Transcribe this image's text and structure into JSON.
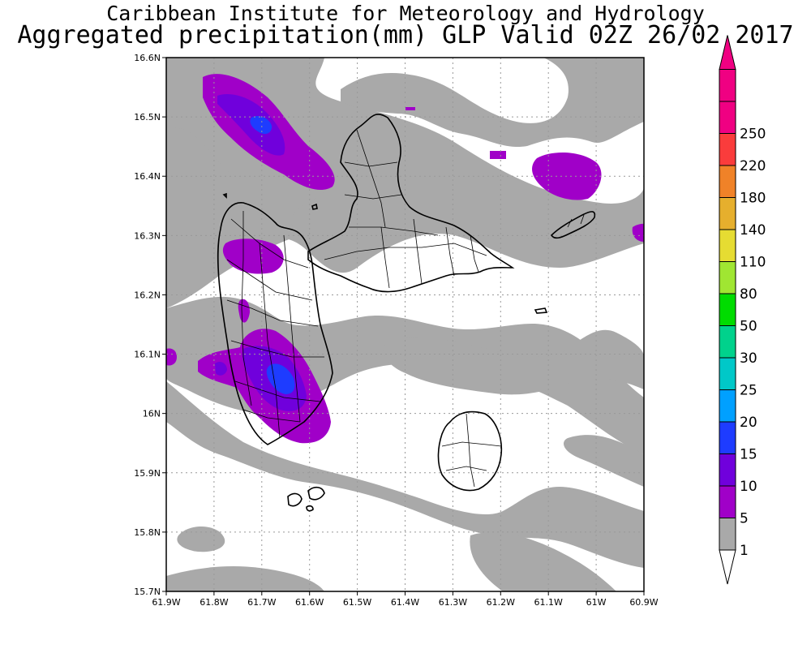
{
  "title": {
    "line1": "Caribbean Institute for Meteorology and Hydrology",
    "line2": "Aggregated precipitation(mm) GLP Valid 02Z 26/02 2017"
  },
  "map": {
    "lon_range": [
      -61.9,
      -60.9
    ],
    "lat_range": [
      15.7,
      16.6
    ],
    "grid": "dotted",
    "x_ticks": [
      "61.9W",
      "61.8W",
      "61.7W",
      "61.6W",
      "61.5W",
      "61.4W",
      "61.3W",
      "61.2W",
      "61.1W",
      "61W",
      "60.9W"
    ],
    "y_ticks": [
      "15.7N",
      "15.8N",
      "15.9N",
      "16N",
      "16.1N",
      "16.2N",
      "16.3N",
      "16.4N",
      "16.5N",
      "16.6N"
    ]
  },
  "colorbar": {
    "labels": [
      "1",
      "5",
      "10",
      "15",
      "20",
      "25",
      "30",
      "50",
      "80",
      "110",
      "140",
      "180",
      "220",
      "250"
    ],
    "colors": [
      "#a9a9a9",
      "#a000c8",
      "#7000dc",
      "#1e3cff",
      "#00a0ff",
      "#00c8c8",
      "#00d28c",
      "#00dc00",
      "#a0e632",
      "#e6dc32",
      "#e6af2d",
      "#f08228",
      "#fa3c3c",
      "#f00082"
    ],
    "below_color": "#ffffff"
  },
  "colors": {
    "light_precip": "#a9a9a9",
    "moderate_precip": "#a000c8",
    "heavy_precip": "#7000dc",
    "very_heavy_precip": "#1e3cff"
  }
}
